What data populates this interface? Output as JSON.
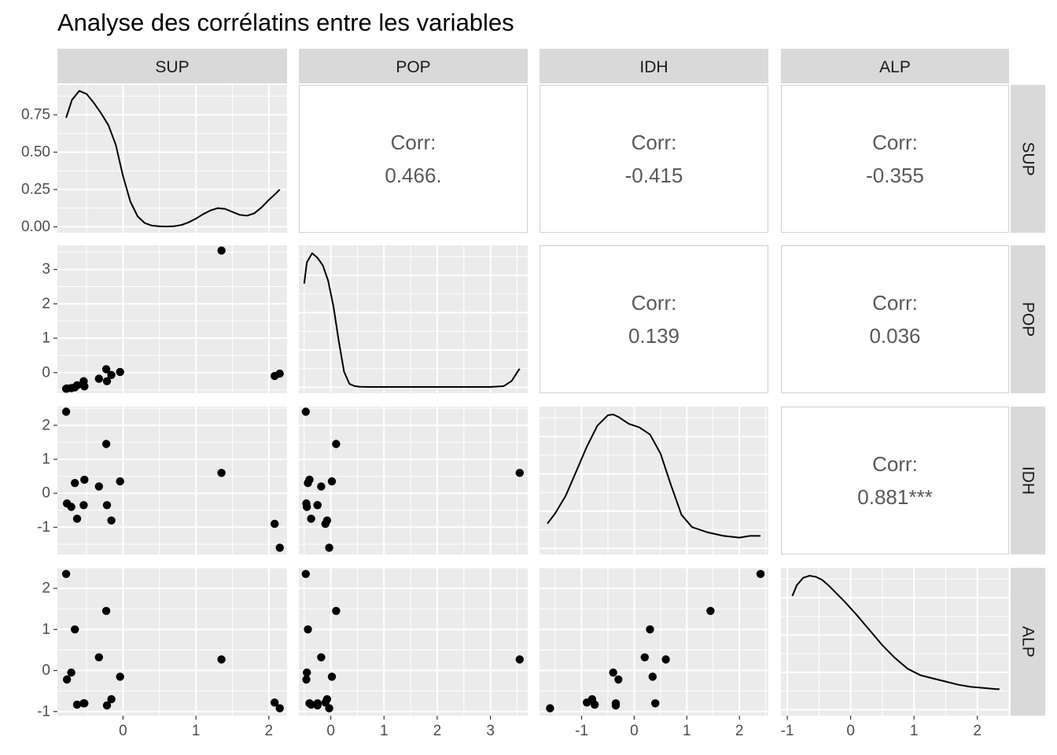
{
  "chart_data": {
    "type": "scatter",
    "title": "Analyse des corrélatins entre les variables",
    "variables": [
      "SUP",
      "POP",
      "IDH",
      "ALP"
    ],
    "correlation_label": "Corr:",
    "correlations": [
      {
        "row": "SUP",
        "col": "POP",
        "value": "0.466."
      },
      {
        "row": "SUP",
        "col": "IDH",
        "value": "-0.415"
      },
      {
        "row": "SUP",
        "col": "ALP",
        "value": "-0.355"
      },
      {
        "row": "POP",
        "col": "IDH",
        "value": "0.139"
      },
      {
        "row": "POP",
        "col": "ALP",
        "value": "0.036"
      },
      {
        "row": "IDH",
        "col": "ALP",
        "value": "0.881***"
      }
    ],
    "axes": {
      "SUP": {
        "range": [
          -0.9,
          2.25
        ],
        "ticks": [
          0,
          1,
          2
        ]
      },
      "POP": {
        "range": [
          -0.6,
          3.7
        ],
        "ticks": [
          0,
          1,
          2,
          3
        ]
      },
      "IDH": {
        "range": [
          -1.8,
          2.55
        ],
        "ticks": [
          -1,
          0,
          1,
          2
        ]
      },
      "ALP": {
        "range": [
          -1.1,
          2.5
        ],
        "ticks": [
          -1,
          0,
          1,
          2
        ]
      }
    },
    "density_axis": {
      "range": [
        -0.04,
        0.95
      ],
      "ticks": [
        "0.00",
        "0.25",
        "0.50",
        "0.75"
      ]
    },
    "observations": [
      {
        "SUP": -0.78,
        "POP": -0.47,
        "IDH": 2.4,
        "ALP": 2.35
      },
      {
        "SUP": -0.77,
        "POP": -0.46,
        "IDH": -0.3,
        "ALP": -0.22
      },
      {
        "SUP": -0.71,
        "POP": -0.45,
        "IDH": -0.4,
        "ALP": -0.05
      },
      {
        "SUP": -0.66,
        "POP": -0.43,
        "IDH": 0.3,
        "ALP": 1.0
      },
      {
        "SUP": -0.63,
        "POP": -0.37,
        "IDH": -0.75,
        "ALP": -0.83
      },
      {
        "SUP": -0.53,
        "POP": -0.4,
        "IDH": 0.4,
        "ALP": -0.8
      },
      {
        "SUP": -0.54,
        "POP": -0.25,
        "IDH": -0.35,
        "ALP": -0.8
      },
      {
        "SUP": -0.33,
        "POP": -0.18,
        "IDH": 0.2,
        "ALP": 0.32
      },
      {
        "SUP": -0.23,
        "POP": 0.1,
        "IDH": 1.45,
        "ALP": 1.45
      },
      {
        "SUP": -0.22,
        "POP": -0.25,
        "IDH": -0.35,
        "ALP": -0.85
      },
      {
        "SUP": -0.16,
        "POP": -0.07,
        "IDH": -0.8,
        "ALP": -0.7
      },
      {
        "SUP": -0.04,
        "POP": 0.02,
        "IDH": 0.35,
        "ALP": -0.15
      },
      {
        "SUP": 1.35,
        "POP": 3.55,
        "IDH": 0.6,
        "ALP": 0.27
      },
      {
        "SUP": 2.08,
        "POP": -0.1,
        "IDH": -0.9,
        "ALP": -0.78
      },
      {
        "SUP": 2.15,
        "POP": -0.03,
        "IDH": -1.6,
        "ALP": -0.92
      }
    ],
    "densities": {
      "SUP": {
        "x": [
          -0.78,
          -0.7,
          -0.6,
          -0.5,
          -0.4,
          -0.3,
          -0.2,
          -0.1,
          0.0,
          0.1,
          0.2,
          0.3,
          0.4,
          0.5,
          0.6,
          0.7,
          0.8,
          0.9,
          1.0,
          1.1,
          1.2,
          1.3,
          1.4,
          1.5,
          1.6,
          1.7,
          1.8,
          1.9,
          2.0,
          2.1,
          2.15
        ],
        "y": [
          0.73,
          0.85,
          0.91,
          0.89,
          0.83,
          0.76,
          0.68,
          0.55,
          0.34,
          0.17,
          0.07,
          0.025,
          0.008,
          0.003,
          0.002,
          0.004,
          0.012,
          0.03,
          0.055,
          0.085,
          0.11,
          0.125,
          0.12,
          0.1,
          0.08,
          0.075,
          0.09,
          0.13,
          0.18,
          0.225,
          0.25
        ]
      },
      "POP": {
        "x": [
          -0.5,
          -0.45,
          -0.35,
          -0.25,
          -0.15,
          -0.05,
          0.05,
          0.15,
          0.25,
          0.35,
          0.45,
          0.55,
          0.7,
          1.0,
          2.0,
          3.0,
          3.25,
          3.4,
          3.5,
          3.55
        ],
        "y": [
          0.68,
          0.82,
          0.88,
          0.85,
          0.8,
          0.7,
          0.53,
          0.3,
          0.1,
          0.02,
          0.005,
          0.001,
          0.0,
          0.0,
          0.0,
          0.0,
          0.005,
          0.04,
          0.095,
          0.12
        ]
      },
      "IDH": {
        "x": [
          -1.65,
          -1.5,
          -1.3,
          -1.1,
          -0.9,
          -0.7,
          -0.5,
          -0.4,
          -0.3,
          -0.2,
          -0.1,
          0.0,
          0.1,
          0.3,
          0.5,
          0.7,
          0.9,
          1.1,
          1.4,
          1.7,
          2.0,
          2.2,
          2.4
        ],
        "y": [
          0.07,
          0.1,
          0.15,
          0.22,
          0.29,
          0.35,
          0.38,
          0.382,
          0.375,
          0.365,
          0.355,
          0.35,
          0.345,
          0.325,
          0.27,
          0.18,
          0.095,
          0.06,
          0.045,
          0.035,
          0.03,
          0.035,
          0.035
        ]
      },
      "ALP": {
        "x": [
          -0.92,
          -0.85,
          -0.75,
          -0.65,
          -0.55,
          -0.45,
          -0.35,
          -0.25,
          -0.1,
          0.1,
          0.3,
          0.5,
          0.7,
          0.9,
          1.1,
          1.3,
          1.5,
          1.7,
          1.9,
          2.1,
          2.3,
          2.35
        ],
        "y": [
          0.53,
          0.58,
          0.615,
          0.625,
          0.62,
          0.605,
          0.58,
          0.55,
          0.505,
          0.44,
          0.37,
          0.3,
          0.24,
          0.19,
          0.16,
          0.145,
          0.13,
          0.115,
          0.105,
          0.1,
          0.095,
          0.095
        ]
      }
    },
    "grid": true
  }
}
